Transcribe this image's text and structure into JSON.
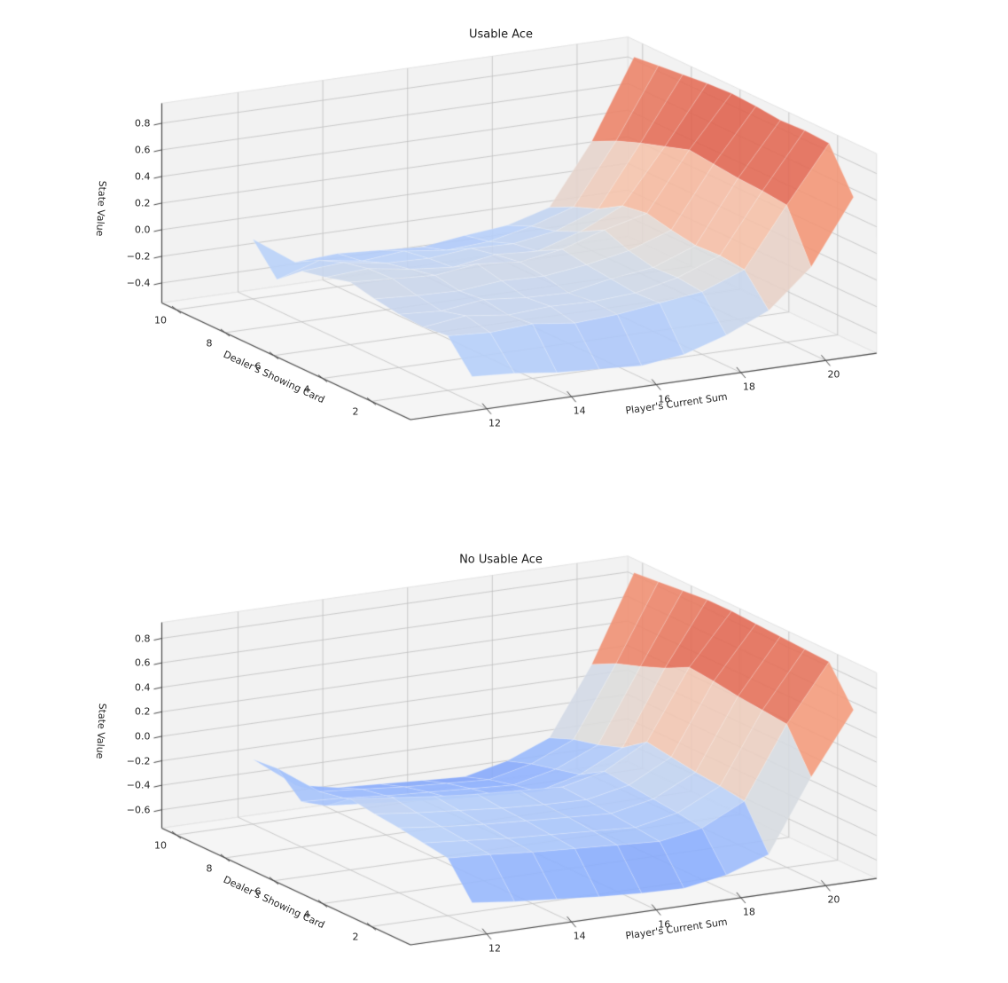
{
  "figure": {
    "background": "#ffffff",
    "text_color": "#1a1a1a",
    "pane_color": "#f2f2f2",
    "grid_color": "#bfbfbf",
    "spine_color": "#454545"
  },
  "colormap": {
    "name": "coolwarm",
    "range": [
      -1,
      1
    ],
    "surface_alpha": 0.9,
    "stops": [
      [
        59,
        76,
        192
      ],
      [
        98,
        130,
        234
      ],
      [
        141,
        176,
        254
      ],
      [
        184,
        208,
        249
      ],
      [
        221,
        221,
        221
      ],
      [
        245,
        196,
        173
      ],
      [
        244,
        154,
        123
      ],
      [
        222,
        96,
        77
      ],
      [
        180,
        4,
        38
      ]
    ]
  },
  "chart_data": [
    {
      "type": "surface_3d",
      "title": "Usable Ace",
      "xlabel": "Player's Current Sum",
      "ylabel": "Dealer's Showing Card",
      "zlabel": "State Value",
      "x": [
        12,
        13,
        14,
        15,
        16,
        17,
        18,
        19,
        20,
        21
      ],
      "y": [
        1,
        2,
        3,
        4,
        5,
        6,
        7,
        8,
        9,
        10
      ],
      "z": [
        [
          -0.36,
          -0.38,
          -0.42,
          -0.44,
          -0.46,
          -0.42,
          -0.32,
          -0.18,
          0.1,
          0.58
        ],
        [
          -0.14,
          -0.16,
          -0.14,
          -0.18,
          -0.16,
          -0.12,
          -0.08,
          0.04,
          0.48,
          0.9
        ],
        [
          -0.16,
          -0.12,
          -0.16,
          -0.14,
          -0.15,
          -0.13,
          -0.06,
          0.06,
          0.5,
          0.91
        ],
        [
          -0.15,
          -0.17,
          -0.13,
          -0.16,
          -0.17,
          -0.11,
          -0.07,
          0.05,
          0.51,
          0.9
        ],
        [
          -0.12,
          -0.14,
          -0.15,
          -0.12,
          -0.13,
          -0.09,
          -0.03,
          0.08,
          0.53,
          0.92
        ],
        [
          -0.08,
          -0.1,
          -0.12,
          -0.08,
          -0.11,
          -0.06,
          0.04,
          0.12,
          0.55,
          0.93
        ],
        [
          -0.13,
          -0.11,
          -0.16,
          -0.19,
          -0.14,
          -0.16,
          -0.06,
          0.09,
          0.49,
          0.92
        ],
        [
          -0.17,
          -0.15,
          -0.2,
          -0.21,
          -0.18,
          -0.19,
          -0.14,
          -0.02,
          0.43,
          0.9
        ],
        [
          -0.32,
          -0.22,
          -0.27,
          -0.24,
          -0.28,
          -0.26,
          -0.19,
          -0.09,
          0.36,
          0.88
        ],
        [
          -0.1,
          -0.32,
          -0.3,
          -0.32,
          -0.34,
          -0.3,
          -0.27,
          -0.18,
          0.27,
          0.86
        ]
      ],
      "xticks": [
        12,
        14,
        16,
        18,
        20
      ],
      "xticklabels": [
        "12",
        "14",
        "16",
        "18",
        "20"
      ],
      "yticks": [
        2,
        4,
        6,
        8,
        10
      ],
      "yticklabels": [
        "2",
        "4",
        "6",
        "8",
        "10"
      ],
      "zticks": [
        -0.4,
        -0.2,
        0.0,
        0.2,
        0.4,
        0.6,
        0.8
      ],
      "zticklabels": [
        "−0.4",
        "−0.2",
        "0.0",
        "0.2",
        "0.4",
        "0.6",
        "0.8"
      ],
      "xlim": [
        10.2,
        21.2
      ],
      "ylim": [
        0.4,
        10.6
      ],
      "zlim": [
        -0.55,
        0.95
      ],
      "grid": true,
      "legend": "none",
      "view": {
        "elev_deg": 14,
        "azim_deg": -119
      }
    },
    {
      "type": "surface_3d",
      "title": "No Usable Ace",
      "xlabel": "Player's Current Sum",
      "ylabel": "Dealer's Showing Card",
      "zlabel": "State Value",
      "x": [
        12,
        13,
        14,
        15,
        16,
        17,
        18,
        19,
        20,
        21
      ],
      "y": [
        1,
        2,
        3,
        4,
        5,
        6,
        7,
        8,
        9,
        10
      ],
      "z": [
        [
          -0.55,
          -0.59,
          -0.62,
          -0.65,
          -0.67,
          -0.68,
          -0.62,
          -0.5,
          0.08,
          0.58
        ],
        [
          -0.28,
          -0.3,
          -0.33,
          -0.35,
          -0.37,
          -0.39,
          -0.33,
          -0.16,
          0.42,
          0.88
        ],
        [
          -0.25,
          -0.28,
          -0.31,
          -0.33,
          -0.35,
          -0.37,
          -0.3,
          -0.13,
          0.44,
          0.89
        ],
        [
          -0.22,
          -0.26,
          -0.29,
          -0.31,
          -0.33,
          -0.35,
          -0.28,
          -0.11,
          0.46,
          0.9
        ],
        [
          -0.2,
          -0.24,
          -0.27,
          -0.3,
          -0.32,
          -0.33,
          -0.26,
          -0.08,
          0.49,
          0.91
        ],
        [
          -0.17,
          -0.21,
          -0.25,
          -0.28,
          -0.3,
          -0.32,
          -0.24,
          -0.05,
          0.51,
          0.92
        ],
        [
          -0.32,
          -0.35,
          -0.38,
          -0.41,
          -0.43,
          -0.45,
          -0.36,
          -0.19,
          0.41,
          0.92
        ],
        [
          -0.38,
          -0.4,
          -0.43,
          -0.45,
          -0.47,
          -0.49,
          -0.41,
          -0.26,
          0.33,
          0.9
        ],
        [
          -0.2,
          -0.44,
          -0.47,
          -0.5,
          -0.52,
          -0.54,
          -0.46,
          -0.31,
          0.26,
          0.88
        ],
        [
          -0.22,
          -0.48,
          -0.55,
          -0.57,
          -0.59,
          -0.61,
          -0.53,
          -0.39,
          0.16,
          0.86
        ]
      ],
      "xticks": [
        12,
        14,
        16,
        18,
        20
      ],
      "xticklabels": [
        "12",
        "14",
        "16",
        "18",
        "20"
      ],
      "yticks": [
        2,
        4,
        6,
        8,
        10
      ],
      "yticklabels": [
        "2",
        "4",
        "6",
        "8",
        "10"
      ],
      "zticks": [
        -0.6,
        -0.4,
        -0.2,
        0.0,
        0.2,
        0.4,
        0.6,
        0.8
      ],
      "zticklabels": [
        "−0.6",
        "−0.4",
        "−0.2",
        "0.0",
        "0.2",
        "0.4",
        "0.6",
        "0.8"
      ],
      "xlim": [
        10.2,
        21.2
      ],
      "ylim": [
        0.4,
        10.6
      ],
      "zlim": [
        -0.75,
        0.93
      ],
      "grid": true,
      "legend": "none",
      "view": {
        "elev_deg": 14,
        "azim_deg": -119
      }
    }
  ]
}
